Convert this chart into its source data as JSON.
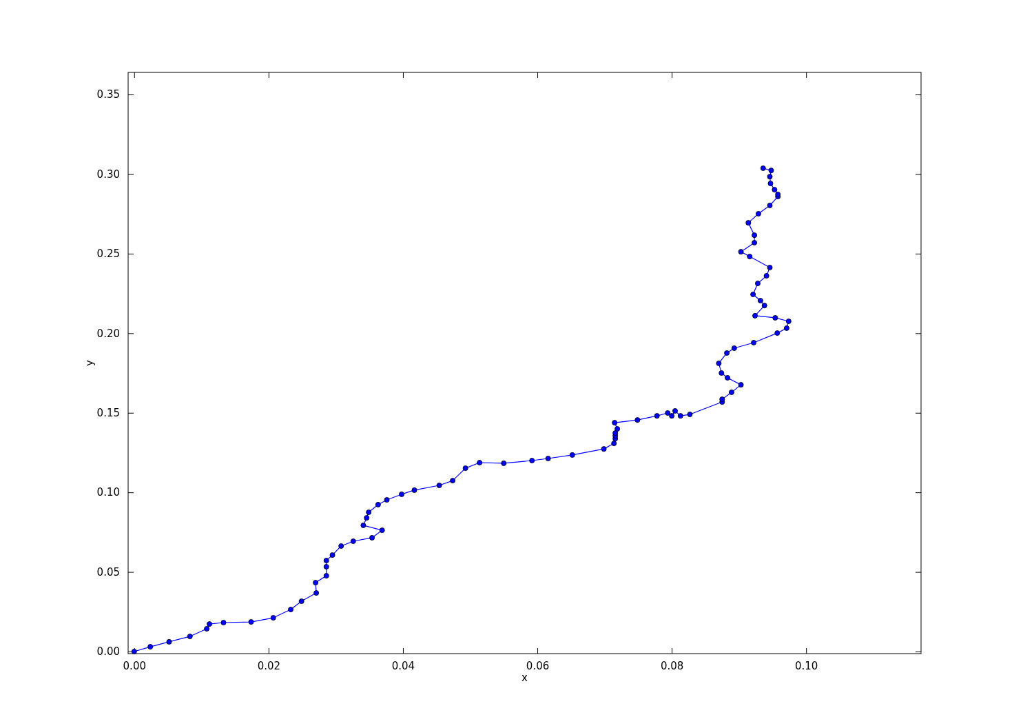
{
  "chart_data": {
    "type": "line",
    "xlabel": "x",
    "ylabel": "y",
    "marker": "circle",
    "line_style": "solid",
    "grid": false,
    "xlim": [
      -0.0009,
      0.1171
    ],
    "ylim": [
      -0.0013,
      0.3639
    ],
    "xticks": [
      {
        "value": 0,
        "label": "0.00"
      },
      {
        "value": 0.02,
        "label": "0.02"
      },
      {
        "value": 0.04,
        "label": "0.04"
      },
      {
        "value": 0.06,
        "label": "0.06"
      },
      {
        "value": 0.08,
        "label": "0.08"
      },
      {
        "value": 0.1,
        "label": "0.10"
      }
    ],
    "yticks": [
      {
        "value": 0,
        "label": "0.00"
      },
      {
        "value": 0.05,
        "label": "0.05"
      },
      {
        "value": 0.1,
        "label": "0.10"
      },
      {
        "value": 0.15,
        "label": "0.15"
      },
      {
        "value": 0.2,
        "label": "0.20"
      },
      {
        "value": 0.25,
        "label": "0.25"
      },
      {
        "value": 0.3,
        "label": "0.30"
      },
      {
        "value": 0.35,
        "label": "0.35"
      }
    ],
    "x": [
      0,
      0.0024,
      0.0052,
      0.0083,
      0.0108,
      0.0112,
      0.0133,
      0.0174,
      0.0207,
      0.0233,
      0.0249,
      0.0271,
      0.027,
      0.0286,
      0.0286,
      0.0286,
      0.0295,
      0.0308,
      0.0326,
      0.0354,
      0.0369,
      0.0341,
      0.0346,
      0.0349,
      0.0363,
      0.0376,
      0.0398,
      0.0417,
      0.0454,
      0.0474,
      0.0493,
      0.0514,
      0.055,
      0.0592,
      0.0616,
      0.0652,
      0.0699,
      0.0714,
      0.0716,
      0.0716,
      0.0716,
      0.0719,
      0.0715,
      0.0749,
      0.0778,
      0.0794,
      0.08,
      0.0805,
      0.0813,
      0.0827,
      0.0875,
      0.0875,
      0.0889,
      0.0903,
      0.0883,
      0.0874,
      0.087,
      0.0882,
      0.0893,
      0.0922,
      0.0957,
      0.0971,
      0.0974,
      0.0954,
      0.0924,
      0.0938,
      0.0932,
      0.0921,
      0.0928,
      0.0941,
      0.0946,
      0.0916,
      0.0903,
      0.0923,
      0.0923,
      0.0914,
      0.0929,
      0.0946,
      0.0958,
      0.0958,
      0.0953,
      0.0947,
      0.0946,
      0.0948,
      0.0936
    ],
    "series": [
      {
        "color": "#0000ff",
        "values": [
          0,
          0.003,
          0.0061,
          0.0095,
          0.0143,
          0.0173,
          0.0182,
          0.0186,
          0.0212,
          0.0264,
          0.0316,
          0.0368,
          0.0433,
          0.0476,
          0.0533,
          0.0572,
          0.0606,
          0.0663,
          0.0693,
          0.0715,
          0.0762,
          0.0793,
          0.084,
          0.0875,
          0.0923,
          0.0953,
          0.0988,
          0.1014,
          0.1044,
          0.1074,
          0.1152,
          0.1187,
          0.1183,
          0.12,
          0.1213,
          0.1235,
          0.1273,
          0.1308,
          0.1338,
          0.1356,
          0.1373,
          0.1399,
          0.1438,
          0.1455,
          0.1481,
          0.1499,
          0.1481,
          0.1512,
          0.1481,
          0.149,
          0.1568,
          0.1585,
          0.1629,
          0.1676,
          0.172,
          0.175,
          0.1811,
          0.1876,
          0.1906,
          0.1941,
          0.2001,
          0.2032,
          0.2075,
          0.2097,
          0.211,
          0.2174,
          0.2205,
          0.2244,
          0.2313,
          0.2361,
          0.2413,
          0.2482,
          0.2512,
          0.2569,
          0.2616,
          0.2694,
          0.2751,
          0.2803,
          0.2859,
          0.2872,
          0.2902,
          0.2941,
          0.2984,
          0.3023,
          0.3037
        ]
      }
    ]
  }
}
